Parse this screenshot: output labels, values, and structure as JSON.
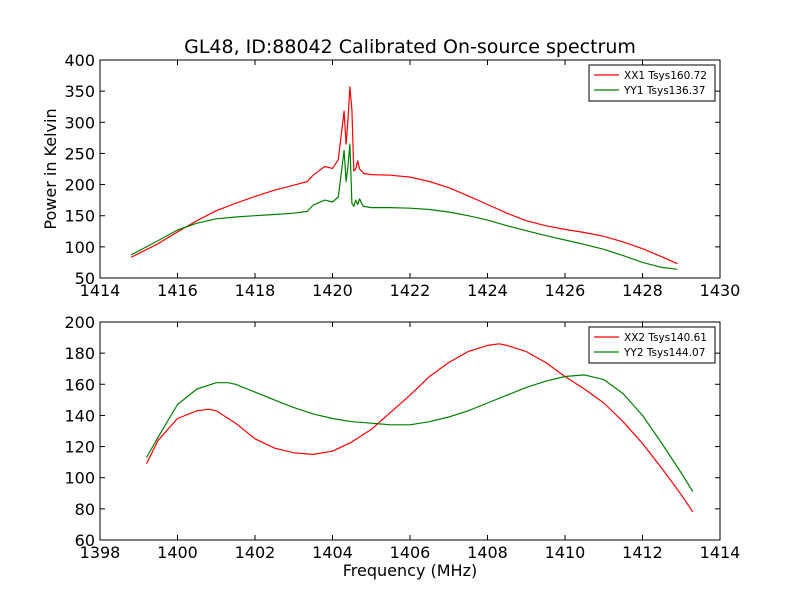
{
  "title": "GL48, ID:88042 Calibrated On-source spectrum",
  "colors": {
    "xx": "#ff0000",
    "yy": "#008000"
  },
  "chart_data": [
    {
      "type": "line",
      "title": "GL48, ID:88042 Calibrated On-source spectrum",
      "xlabel": "",
      "ylabel": "Power in Kelvin",
      "xlim": [
        1414,
        1430
      ],
      "ylim": [
        50,
        400
      ],
      "xticks": [
        1414,
        1416,
        1418,
        1420,
        1422,
        1424,
        1426,
        1428,
        1430
      ],
      "yticks": [
        50,
        100,
        150,
        200,
        250,
        300,
        350,
        400
      ],
      "legend_position": "top-right",
      "series": [
        {
          "name": "XX1 Tsys160.72",
          "color": "#ff0000",
          "x": [
            1414.8,
            1415.5,
            1416.0,
            1416.5,
            1417.0,
            1417.5,
            1418.0,
            1418.5,
            1419.0,
            1419.35,
            1419.5,
            1419.8,
            1420.0,
            1420.15,
            1420.3,
            1420.35,
            1420.4,
            1420.45,
            1420.5,
            1420.55,
            1420.6,
            1420.65,
            1420.7,
            1420.75,
            1420.8,
            1421.0,
            1421.5,
            1422.0,
            1422.5,
            1423.0,
            1423.5,
            1424.0,
            1424.5,
            1425.0,
            1425.5,
            1426.0,
            1426.5,
            1427.0,
            1427.5,
            1428.0,
            1428.5,
            1428.9
          ],
          "y": [
            83,
            105,
            124,
            142,
            158,
            170,
            181,
            191,
            199,
            205,
            215,
            229,
            226,
            240,
            318,
            265,
            305,
            357,
            320,
            222,
            225,
            238,
            225,
            222,
            218,
            216,
            215,
            212,
            205,
            195,
            182,
            168,
            154,
            142,
            134,
            128,
            123,
            117,
            108,
            97,
            84,
            73
          ]
        },
        {
          "name": "YY1 Tsys136.37",
          "color": "#008000",
          "x": [
            1414.8,
            1415.5,
            1416.0,
            1416.5,
            1417.0,
            1417.5,
            1418.0,
            1418.5,
            1419.0,
            1419.35,
            1419.5,
            1419.8,
            1420.0,
            1420.15,
            1420.3,
            1420.35,
            1420.4,
            1420.45,
            1420.5,
            1420.55,
            1420.6,
            1420.65,
            1420.7,
            1420.75,
            1420.8,
            1421.0,
            1421.5,
            1422.0,
            1422.5,
            1423.0,
            1423.5,
            1424.0,
            1424.5,
            1425.0,
            1425.5,
            1426.0,
            1426.5,
            1427.0,
            1427.5,
            1428.0,
            1428.5,
            1428.9
          ],
          "y": [
            87,
            110,
            127,
            138,
            145,
            148,
            150,
            152,
            154,
            157,
            167,
            175,
            172,
            180,
            255,
            205,
            230,
            265,
            170,
            165,
            175,
            168,
            177,
            170,
            165,
            163,
            163,
            162,
            160,
            156,
            150,
            143,
            134,
            126,
            118,
            111,
            104,
            96,
            86,
            75,
            67,
            64
          ]
        }
      ]
    },
    {
      "type": "line",
      "title": "",
      "xlabel": "Frequency (MHz)",
      "ylabel": "",
      "xlim": [
        1398,
        1414
      ],
      "ylim": [
        60,
        200
      ],
      "xticks": [
        1398,
        1400,
        1402,
        1404,
        1406,
        1408,
        1410,
        1412,
        1414
      ],
      "yticks": [
        60,
        80,
        100,
        120,
        140,
        160,
        180,
        200
      ],
      "legend_position": "top-right",
      "series": [
        {
          "name": "XX2 Tsys140.61",
          "color": "#ff0000",
          "x": [
            1399.2,
            1399.5,
            1400.0,
            1400.5,
            1400.8,
            1401.0,
            1401.5,
            1402.0,
            1402.5,
            1403.0,
            1403.5,
            1404.0,
            1404.5,
            1405.0,
            1405.5,
            1406.0,
            1406.5,
            1407.0,
            1407.5,
            1408.0,
            1408.3,
            1408.5,
            1409.0,
            1409.5,
            1410.0,
            1410.5,
            1411.0,
            1411.5,
            1412.0,
            1412.5,
            1413.0,
            1413.3
          ],
          "y": [
            109,
            124,
            138,
            143,
            144,
            143,
            135,
            125,
            119,
            116,
            115,
            117,
            123,
            131,
            142,
            153,
            165,
            174,
            181,
            185,
            186,
            185,
            181,
            174,
            165,
            157,
            148,
            136,
            122,
            106,
            89,
            78
          ]
        },
        {
          "name": "YY2 Tsys144.07",
          "color": "#008000",
          "x": [
            1399.2,
            1399.5,
            1400.0,
            1400.5,
            1401.0,
            1401.3,
            1401.5,
            1402.0,
            1402.5,
            1403.0,
            1403.5,
            1404.0,
            1404.5,
            1405.0,
            1405.5,
            1406.0,
            1406.5,
            1407.0,
            1407.5,
            1408.0,
            1408.5,
            1409.0,
            1409.5,
            1410.0,
            1410.5,
            1411.0,
            1411.5,
            1412.0,
            1412.5,
            1413.0,
            1413.3
          ],
          "y": [
            113,
            126,
            147,
            157,
            161,
            161,
            160,
            155,
            150,
            145,
            141,
            138,
            136,
            135,
            134,
            134,
            136,
            139,
            143,
            148,
            153,
            158,
            162,
            165,
            166,
            163,
            154,
            140,
            122,
            103,
            91
          ]
        }
      ]
    }
  ]
}
